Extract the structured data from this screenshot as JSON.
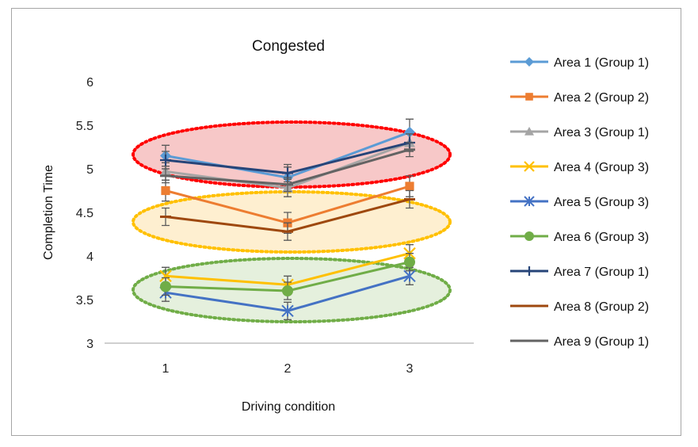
{
  "chart_data": {
    "type": "line",
    "title": "Congested",
    "xlabel": "Driving condition",
    "ylabel": "Completion Time",
    "categories": [
      "1",
      "2",
      "3"
    ],
    "ylim": [
      3,
      6
    ],
    "yticks": [
      "3",
      "3.5",
      "4",
      "4.5",
      "5",
      "5.5",
      "6"
    ],
    "grid": false,
    "legend_position": "right",
    "error_bars": true,
    "series": [
      {
        "name": "Area 1 (Group 1)",
        "color": "#5b9bd5",
        "marker": "diamond",
        "values": [
          5.15,
          4.9,
          5.42
        ],
        "err": [
          0.12,
          0.12,
          0.15
        ]
      },
      {
        "name": "Area 2 (Group 2)",
        "color": "#ed7d31",
        "marker": "square",
        "values": [
          4.75,
          4.38,
          4.8
        ],
        "err": [
          0.12,
          0.12,
          0.12
        ]
      },
      {
        "name": "Area 3 (Group 1)",
        "color": "#a5a5a5",
        "marker": "triangle",
        "values": [
          4.97,
          4.78,
          5.3
        ],
        "err": [
          0.1,
          0.1,
          0.1
        ]
      },
      {
        "name": "Area 4 (Group 3)",
        "color": "#ffc000",
        "marker": "x",
        "values": [
          3.77,
          3.67,
          4.03
        ],
        "err": [
          0.1,
          0.1,
          0.1
        ]
      },
      {
        "name": "Area 5 (Group 3)",
        "color": "#4472c4",
        "marker": "star",
        "values": [
          3.58,
          3.37,
          3.77
        ],
        "err": [
          0.1,
          0.1,
          0.1
        ]
      },
      {
        "name": "Area 6 (Group 3)",
        "color": "#70ad47",
        "marker": "circle",
        "values": [
          3.65,
          3.6,
          3.93
        ],
        "err": [
          0.1,
          0.1,
          0.1
        ]
      },
      {
        "name": "Area 7 (Group 1)",
        "color": "#264478",
        "marker": "plus",
        "values": [
          5.1,
          4.95,
          5.3
        ],
        "err": [
          0.1,
          0.1,
          0.1
        ]
      },
      {
        "name": "Area 8 (Group 2)",
        "color": "#9e480e",
        "marker": "dash",
        "values": [
          4.45,
          4.28,
          4.65
        ],
        "err": [
          0.1,
          0.1,
          0.1
        ]
      },
      {
        "name": "Area 9 (Group 1)",
        "color": "#636363",
        "marker": "dash",
        "values": [
          4.92,
          4.82,
          5.22
        ],
        "err": [
          0.08,
          0.08,
          0.08
        ]
      }
    ],
    "group_highlights": [
      {
        "color": "#ff0000",
        "fill": "#f4b6b6"
      },
      {
        "color": "#ffc000",
        "fill": "#fde9c0"
      },
      {
        "color": "#70ad47",
        "fill": "#dcebd1"
      }
    ]
  }
}
